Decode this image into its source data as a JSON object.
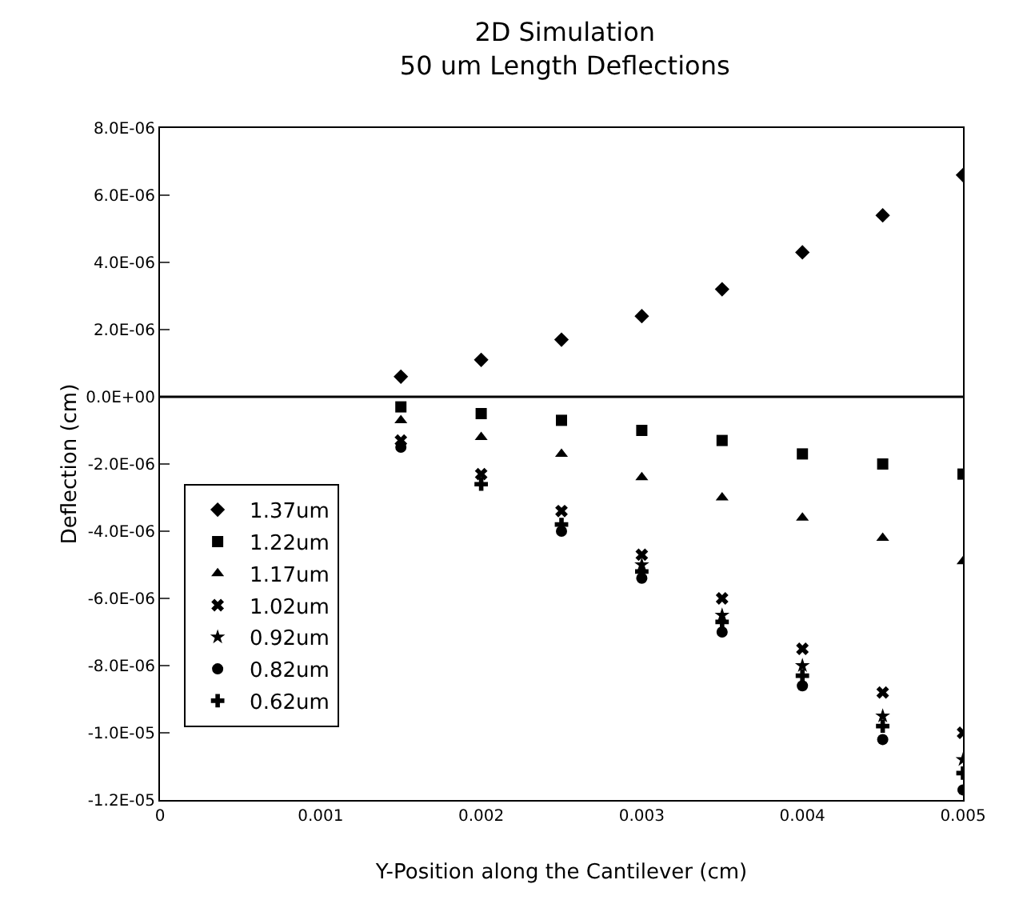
{
  "chart_data": {
    "type": "scatter",
    "title": "2D Simulation\n50 um Length Deflections",
    "xlabel": "Y-Position along the Cantilever (cm)",
    "ylabel": "Deflection (cm)",
    "x": [
      0.0015,
      0.002,
      0.0025,
      0.003,
      0.0035,
      0.004,
      0.0045,
      0.005
    ],
    "xlim": [
      0,
      0.005
    ],
    "xticks": [
      0,
      0.001,
      0.002,
      0.003,
      0.004,
      0.005
    ],
    "ylim": [
      -1.2e-05,
      8e-06
    ],
    "yticks": [
      {
        "value": 8e-06,
        "label": "8.0E-06"
      },
      {
        "value": 6e-06,
        "label": "6.0E-06"
      },
      {
        "value": 4e-06,
        "label": "4.0E-06"
      },
      {
        "value": 2e-06,
        "label": "2.0E-06"
      },
      {
        "value": 0,
        "label": "0.0E+00"
      },
      {
        "value": -2e-06,
        "label": "-2.0E-06"
      },
      {
        "value": -4e-06,
        "label": "-4.0E-06"
      },
      {
        "value": -6e-06,
        "label": "-6.0E-06"
      },
      {
        "value": -8e-06,
        "label": "-8.0E-06"
      },
      {
        "value": -1e-05,
        "label": "-1.0E-05"
      },
      {
        "value": -1.2e-05,
        "label": "-1.2E-05"
      }
    ],
    "ref_lines": [
      {
        "axis": "y",
        "value": 0,
        "color": "#000000"
      }
    ],
    "legend": "left",
    "series": [
      {
        "name": "1.37um",
        "color": "#000000",
        "marker": "diamond",
        "values": [
          6e-07,
          1.1e-06,
          1.7e-06,
          2.4e-06,
          3.2e-06,
          4.3e-06,
          5.4e-06,
          6.6e-06
        ]
      },
      {
        "name": "1.22um",
        "color": "#000000",
        "marker": "square",
        "values": [
          -3e-07,
          -5e-07,
          -7e-07,
          -1e-06,
          -1.3e-06,
          -1.7e-06,
          -2e-06,
          -2.3e-06
        ]
      },
      {
        "name": "1.17um",
        "color": "#000000",
        "marker": "triangle",
        "values": [
          -7e-07,
          -1.2e-06,
          -1.7e-06,
          -2.4e-06,
          -3e-06,
          -3.6e-06,
          -4.2e-06,
          -4.9e-06
        ]
      },
      {
        "name": "1.02um",
        "color": "#000000",
        "marker": "cross",
        "values": [
          -1.3e-06,
          -2.3e-06,
          -3.4e-06,
          -4.7e-06,
          -6e-06,
          -7.5e-06,
          -8.8e-06,
          -1e-05
        ]
      },
      {
        "name": "0.92um",
        "color": "#000000",
        "marker": "star",
        "values": [
          null,
          null,
          null,
          -5e-06,
          -6.5e-06,
          -8e-06,
          -9.5e-06,
          -1.08e-05
        ]
      },
      {
        "name": "0.82um",
        "color": "#000000",
        "marker": "circle",
        "values": [
          -1.5e-06,
          null,
          -4e-06,
          -5.4e-06,
          -7e-06,
          -8.6e-06,
          -1.02e-05,
          -1.17e-05
        ]
      },
      {
        "name": "0.62um",
        "color": "#000000",
        "marker": "plus",
        "values": [
          null,
          -2.6e-06,
          -3.8e-06,
          -5.2e-06,
          -6.7e-06,
          -8.3e-06,
          -9.8e-06,
          -1.12e-05
        ]
      }
    ]
  }
}
